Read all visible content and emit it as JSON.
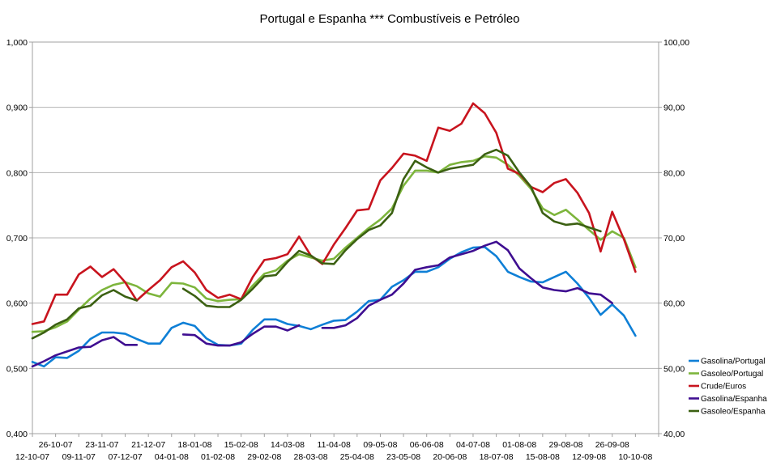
{
  "chart_data": {
    "type": "line",
    "title": "Portugal e Espanha *** Combustíveis e Petróleo",
    "xlabel": "",
    "ylabel": "",
    "y_left": {
      "ylim": [
        0.4,
        1.0
      ],
      "ticks": [
        "0,400",
        "0,500",
        "0,600",
        "0,700",
        "0,800",
        "0,900",
        "1,000"
      ]
    },
    "y_right": {
      "ylim": [
        40,
        100
      ],
      "ticks": [
        "40,00",
        "50,00",
        "60,00",
        "70,00",
        "80,00",
        "90,00",
        "100,00"
      ]
    },
    "x_ticks_top": [
      "26-10-07",
      "23-11-07",
      "21-12-07",
      "18-01-08",
      "15-02-08",
      "14-03-08",
      "11-04-08",
      "09-05-08",
      "06-06-08",
      "04-07-08",
      "01-08-08",
      "29-08-08",
      "26-09-08"
    ],
    "x_ticks_bottom": [
      "12-10-07",
      "09-11-07",
      "07-12-07",
      "04-01-08",
      "01-02-08",
      "29-02-08",
      "28-03-08",
      "25-04-08",
      "23-05-08",
      "20-06-08",
      "18-07-08",
      "15-08-08",
      "12-09-08",
      "10-10-08"
    ],
    "grid": true,
    "legend_position": "right",
    "series": [
      {
        "name": "Gasolina/Portugal",
        "axis": "left",
        "color": "#0e7fd6",
        "x": [
          0,
          0.5,
          1,
          1.5,
          2,
          2.5,
          3,
          3.5,
          4,
          4.5,
          5,
          5.5,
          6,
          6.5,
          7,
          7.5,
          8,
          8.5,
          9,
          9.5,
          10,
          10.5,
          11,
          11.5,
          12,
          12.5,
          13,
          13.5,
          14,
          14.5,
          15,
          15.5,
          16,
          16.5,
          17,
          17.5,
          18,
          18.5,
          19,
          19.5,
          20,
          20.5,
          21,
          21.5,
          22,
          22.5,
          23,
          23.5,
          24,
          24.5,
          25,
          25.5,
          26,
          26.5,
          27
        ],
        "y": [
          0.51,
          0.503,
          0.517,
          0.516,
          0.527,
          0.545,
          0.555,
          0.555,
          0.553,
          0.545,
          0.538,
          0.538,
          0.562,
          0.57,
          0.565,
          0.546,
          0.536,
          0.535,
          0.538,
          0.559,
          0.575,
          0.575,
          0.568,
          0.565,
          0.56,
          0.567,
          0.573,
          0.574,
          0.587,
          0.603,
          0.605,
          0.625,
          0.635,
          0.648,
          0.648,
          0.655,
          0.668,
          0.678,
          0.685,
          0.686,
          0.672,
          0.648,
          0.64,
          0.633,
          0.632,
          0.64,
          0.648,
          0.63,
          0.608,
          0.582,
          0.598,
          0.581,
          0.55,
          null,
          null
        ]
      },
      {
        "name": "Gasoleo/Portugal",
        "axis": "left",
        "color": "#7db53c",
        "x": [
          0,
          0.5,
          1,
          1.5,
          2,
          2.5,
          3,
          3.5,
          4,
          4.5,
          5,
          5.5,
          6,
          6.5,
          7,
          7.5,
          8,
          8.5,
          9,
          9.5,
          10,
          10.5,
          11,
          11.5,
          12,
          12.5,
          13,
          13.5,
          14,
          14.5,
          15,
          15.5,
          16,
          16.5,
          17,
          17.5,
          18,
          18.5,
          19,
          19.5,
          20,
          20.5,
          21,
          21.5,
          22,
          22.5,
          23,
          23.5,
          24,
          24.5,
          25,
          25.5,
          26,
          26.5,
          27
        ],
        "y": [
          0.556,
          0.557,
          0.563,
          0.572,
          0.59,
          0.607,
          0.62,
          0.628,
          0.632,
          0.626,
          0.615,
          0.61,
          0.631,
          0.63,
          0.624,
          0.607,
          0.603,
          0.605,
          0.606,
          0.627,
          0.645,
          0.65,
          0.665,
          0.675,
          0.67,
          0.665,
          0.668,
          0.685,
          0.7,
          0.715,
          0.728,
          0.745,
          0.78,
          0.803,
          0.803,
          0.8,
          0.812,
          0.816,
          0.818,
          0.825,
          0.823,
          0.812,
          0.795,
          0.775,
          0.745,
          0.735,
          0.743,
          0.728,
          0.712,
          0.697,
          0.71,
          0.7,
          0.655,
          null,
          null
        ]
      },
      {
        "name": "Crude/Euros",
        "axis": "right",
        "color": "#c8141e",
        "x": [
          0,
          0.5,
          1,
          1.5,
          2,
          2.5,
          3,
          3.5,
          4,
          4.5,
          5,
          5.5,
          6,
          6.5,
          7,
          7.5,
          8,
          8.5,
          9,
          9.5,
          10,
          10.5,
          11,
          11.5,
          12,
          12.5,
          13,
          13.5,
          14,
          14.5,
          15,
          15.5,
          16,
          16.5,
          17,
          17.5,
          18,
          18.5,
          19,
          19.5,
          20,
          20.5,
          21,
          21.5,
          22,
          22.5,
          23,
          23.5,
          24,
          24.5,
          25,
          25.5,
          26,
          26.5,
          27
        ],
        "y": [
          56.8,
          57.2,
          61.3,
          61.3,
          64.4,
          65.6,
          64.0,
          65.2,
          63.2,
          60.4,
          62.0,
          63.5,
          65.5,
          66.4,
          64.7,
          62.0,
          60.8,
          61.3,
          60.6,
          64.0,
          66.6,
          66.9,
          67.5,
          70.2,
          67.3,
          66.0,
          69.0,
          71.5,
          74.2,
          74.4,
          78.8,
          80.7,
          82.9,
          82.6,
          81.8,
          86.9,
          86.4,
          87.5,
          90.6,
          89.1,
          86.1,
          80.6,
          79.8,
          77.8,
          77.0,
          78.4,
          79.0,
          76.9,
          73.8,
          67.9,
          74.0,
          69.8,
          64.8,
          null,
          null
        ]
      },
      {
        "name": "Gasolina/Espanha",
        "axis": "left",
        "color": "#3f0e91",
        "x": [
          0,
          0.5,
          1,
          1.5,
          2,
          2.5,
          3,
          3.5,
          4,
          4.5,
          5,
          5.5,
          6,
          6.5,
          7,
          7.5,
          8,
          8.5,
          9,
          9.5,
          10,
          10.5,
          11,
          11.5,
          12,
          12.5,
          13,
          13.5,
          14,
          14.5,
          15,
          15.5,
          16,
          16.5,
          17,
          17.5,
          18,
          18.5,
          19,
          19.5,
          20,
          20.5,
          21,
          21.5,
          22,
          22.5,
          23,
          23.5,
          24,
          24.5,
          25,
          25.5,
          26,
          26.5,
          27
        ],
        "y": [
          0.503,
          0.511,
          0.52,
          0.526,
          0.532,
          0.533,
          0.543,
          0.548,
          0.536,
          0.536,
          null,
          null,
          null,
          0.552,
          0.551,
          0.538,
          0.535,
          0.535,
          0.54,
          0.553,
          0.564,
          0.564,
          0.558,
          0.566,
          null,
          0.562,
          0.562,
          0.566,
          0.577,
          0.596,
          0.605,
          0.613,
          0.63,
          0.651,
          0.655,
          0.658,
          0.67,
          0.675,
          0.68,
          0.688,
          0.694,
          0.681,
          0.653,
          0.638,
          0.624,
          0.62,
          0.618,
          0.623,
          0.615,
          0.613,
          0.6,
          null,
          null,
          null,
          null
        ]
      },
      {
        "name": "Gasoleo/Espanha",
        "axis": "left",
        "color": "#3b6012",
        "x": [
          0,
          0.5,
          1,
          1.5,
          2,
          2.5,
          3,
          3.5,
          4,
          4.5,
          5,
          5.5,
          6,
          6.5,
          7,
          7.5,
          8,
          8.5,
          9,
          9.5,
          10,
          10.5,
          11,
          11.5,
          12,
          12.5,
          13,
          13.5,
          14,
          14.5,
          15,
          15.5,
          16,
          16.5,
          17,
          17.5,
          18,
          18.5,
          19,
          19.5,
          20,
          20.5,
          21,
          21.5,
          22,
          22.5,
          23,
          23.5,
          24,
          24.5,
          25,
          25.5,
          26,
          26.5,
          27
        ],
        "y": [
          0.546,
          0.555,
          0.567,
          0.575,
          0.592,
          0.596,
          0.612,
          0.62,
          0.61,
          0.604,
          null,
          null,
          null,
          0.622,
          0.611,
          0.596,
          0.594,
          0.594,
          0.605,
          0.622,
          0.641,
          0.643,
          0.663,
          0.68,
          0.673,
          0.661,
          0.66,
          0.681,
          0.698,
          0.712,
          0.719,
          0.738,
          0.79,
          0.818,
          0.808,
          0.8,
          0.806,
          0.809,
          0.812,
          0.828,
          0.835,
          0.826,
          0.8,
          0.778,
          0.738,
          0.725,
          0.72,
          0.722,
          0.716,
          0.71,
          null,
          null,
          null,
          null,
          null
        ]
      }
    ]
  }
}
